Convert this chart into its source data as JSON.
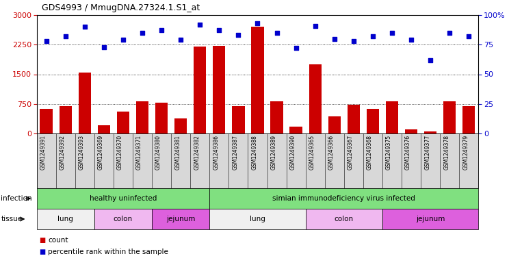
{
  "title": "GDS4993 / MmugDNA.27324.1.S1_at",
  "samples": [
    "GSM1249391",
    "GSM1249392",
    "GSM1249393",
    "GSM1249369",
    "GSM1249370",
    "GSM1249371",
    "GSM1249380",
    "GSM1249381",
    "GSM1249382",
    "GSM1249386",
    "GSM1249387",
    "GSM1249388",
    "GSM1249389",
    "GSM1249390",
    "GSM1249365",
    "GSM1249366",
    "GSM1249367",
    "GSM1249368",
    "GSM1249375",
    "GSM1249376",
    "GSM1249377",
    "GSM1249378",
    "GSM1249379"
  ],
  "counts": [
    620,
    700,
    1540,
    200,
    550,
    820,
    780,
    390,
    2200,
    2220,
    700,
    2700,
    820,
    180,
    1750,
    430,
    720,
    620,
    820,
    110,
    60,
    820,
    700
  ],
  "percentiles": [
    78,
    82,
    90,
    73,
    79,
    85,
    87,
    79,
    92,
    87,
    83,
    93,
    85,
    72,
    91,
    80,
    78,
    82,
    85,
    79,
    62,
    85,
    82
  ],
  "bar_color": "#cc0000",
  "dot_color": "#0000cc",
  "left_ylim": [
    0,
    3000
  ],
  "left_yticks": [
    0,
    750,
    1500,
    2250,
    3000
  ],
  "right_ylim": [
    0,
    100
  ],
  "right_yticks": [
    0,
    25,
    50,
    75,
    100
  ],
  "infection_divider": 9,
  "infection_groups": [
    {
      "label": "healthy uninfected",
      "start": 0,
      "end": 8
    },
    {
      "label": "simian immunodeficiency virus infected",
      "start": 9,
      "end": 22
    }
  ],
  "infection_color": "#80e080",
  "tissue_groups": [
    {
      "label": "lung",
      "start": 0,
      "end": 2,
      "type": "lung"
    },
    {
      "label": "colon",
      "start": 3,
      "end": 5,
      "type": "pink"
    },
    {
      "label": "jejunum",
      "start": 6,
      "end": 8,
      "type": "magenta"
    },
    {
      "label": "lung",
      "start": 9,
      "end": 13,
      "type": "lung"
    },
    {
      "label": "colon",
      "start": 14,
      "end": 17,
      "type": "pink"
    },
    {
      "label": "jejunum",
      "start": 18,
      "end": 22,
      "type": "magenta"
    }
  ],
  "lung_color": "#f0f0f0",
  "pink_color": "#f0b8f0",
  "magenta_color": "#dd60dd",
  "xtick_bg": "#d8d8d8",
  "infection_row_label": "infection",
  "tissue_row_label": "tissue",
  "legend_count_label": "count",
  "legend_percentile_label": "percentile rank within the sample",
  "bg_color": "#ffffff",
  "tick_color_left": "#cc0000",
  "tick_color_right": "#0000cc"
}
